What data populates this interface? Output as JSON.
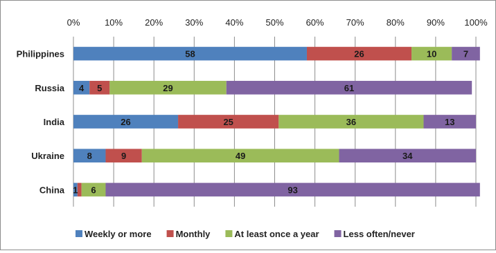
{
  "chart_data": {
    "type": "bar",
    "orientation": "horizontal",
    "stacked": true,
    "title": "",
    "xlabel": "",
    "ylabel": "",
    "xlim": [
      0,
      100
    ],
    "x_ticks": [
      "0%",
      "10%",
      "20%",
      "30%",
      "40%",
      "50%",
      "60%",
      "70%",
      "80%",
      "90%",
      "100%"
    ],
    "x_axis_position": "top",
    "grid": true,
    "legend_position": "bottom",
    "categories": [
      "Philippines",
      "Russia",
      "India",
      "Ukraine",
      "China"
    ],
    "series": [
      {
        "name": "Weekly or more",
        "values": [
          58,
          4,
          26,
          8,
          1
        ],
        "color": "#4f81bd"
      },
      {
        "name": "Monthly",
        "values": [
          26,
          5,
          25,
          9,
          1
        ],
        "color": "#c0504d"
      },
      {
        "name": "At least once a year",
        "values": [
          10,
          29,
          36,
          49,
          6
        ],
        "color": "#9bbb59"
      },
      {
        "name": "Less often/never",
        "values": [
          7,
          61,
          13,
          34,
          93
        ],
        "color": "#8064a2"
      }
    ],
    "data_labels": [
      [
        "58",
        "26",
        "10",
        "7"
      ],
      [
        "4",
        "5",
        "29",
        "61"
      ],
      [
        "26",
        "25",
        "36",
        "13"
      ],
      [
        "8",
        "9",
        "49",
        "34"
      ],
      [
        "1",
        "",
        "6",
        "93"
      ]
    ]
  }
}
